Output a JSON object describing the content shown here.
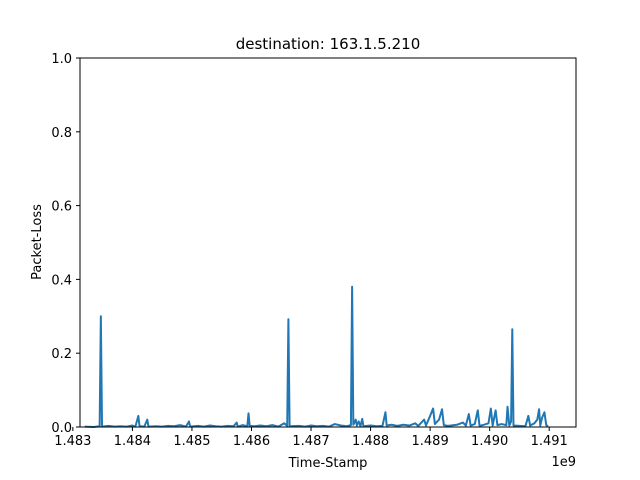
{
  "chart_data": {
    "type": "line",
    "title": "destination: 163.1.5.210",
    "xlabel": "Time-Stamp",
    "ylabel": "Packet-Loss",
    "x_offset_label": "1e9",
    "xlim": [
      1.48312,
      1.49145
    ],
    "ylim": [
      0.0,
      1.0
    ],
    "x_ticks": [
      1.483,
      1.484,
      1.485,
      1.486,
      1.487,
      1.488,
      1.489,
      1.49,
      1.491
    ],
    "x_tick_labels": [
      "1.483",
      "1.484",
      "1.485",
      "1.486",
      "1.487",
      "1.488",
      "1.489",
      "1.490",
      "1.491"
    ],
    "y_ticks": [
      0.0,
      0.2,
      0.4,
      0.6,
      0.8,
      1.0
    ],
    "y_tick_labels": [
      "0.0",
      "0.2",
      "0.4",
      "0.6",
      "0.8",
      "1.0"
    ],
    "grid": false,
    "legend": "none",
    "line_color": "#1f77b4",
    "series": [
      {
        "values": [
          [
            1.4832,
            0.001
          ],
          [
            1.48335,
            0.0
          ],
          [
            1.4834,
            0.001
          ],
          [
            1.48345,
            0.002
          ],
          [
            1.48347,
            0.3
          ],
          [
            1.48349,
            0.001
          ],
          [
            1.4836,
            0.003
          ],
          [
            1.4837,
            0.001
          ],
          [
            1.4838,
            0.002
          ],
          [
            1.4839,
            0.001
          ],
          [
            1.484,
            0.004
          ],
          [
            1.48405,
            0.001
          ],
          [
            1.4841,
            0.03
          ],
          [
            1.48412,
            0.002
          ],
          [
            1.4842,
            0.001
          ],
          [
            1.48425,
            0.02
          ],
          [
            1.48427,
            0.001
          ],
          [
            1.4844,
            0.002
          ],
          [
            1.4845,
            0.001
          ],
          [
            1.4846,
            0.003
          ],
          [
            1.4847,
            0.002
          ],
          [
            1.4848,
            0.005
          ],
          [
            1.4849,
            0.001
          ],
          [
            1.48495,
            0.015
          ],
          [
            1.48497,
            0.001
          ],
          [
            1.4851,
            0.003
          ],
          [
            1.4852,
            0.001
          ],
          [
            1.4853,
            0.004
          ],
          [
            1.4854,
            0.002
          ],
          [
            1.4855,
            0.001
          ],
          [
            1.4856,
            0.003
          ],
          [
            1.4857,
            0.002
          ],
          [
            1.48575,
            0.012
          ],
          [
            1.48577,
            0.001
          ],
          [
            1.48585,
            0.005
          ],
          [
            1.48593,
            0.002
          ],
          [
            1.48595,
            0.037
          ],
          [
            1.48597,
            0.003
          ],
          [
            1.48605,
            0.002
          ],
          [
            1.48615,
            0.004
          ],
          [
            1.48625,
            0.002
          ],
          [
            1.48635,
            0.005
          ],
          [
            1.48645,
            0.001
          ],
          [
            1.48655,
            0.01
          ],
          [
            1.4866,
            0.003
          ],
          [
            1.48662,
            0.292
          ],
          [
            1.48664,
            0.002
          ],
          [
            1.4868,
            0.003
          ],
          [
            1.4869,
            0.001
          ],
          [
            1.487,
            0.004
          ],
          [
            1.4871,
            0.002
          ],
          [
            1.4872,
            0.003
          ],
          [
            1.4873,
            0.001
          ],
          [
            1.4874,
            0.008
          ],
          [
            1.4875,
            0.004
          ],
          [
            1.4876,
            0.002
          ],
          [
            1.48767,
            0.005
          ],
          [
            1.48769,
            0.38
          ],
          [
            1.48771,
            0.006
          ],
          [
            1.48775,
            0.02
          ],
          [
            1.48777,
            0.004
          ],
          [
            1.4878,
            0.015
          ],
          [
            1.48783,
            0.002
          ],
          [
            1.48786,
            0.022
          ],
          [
            1.48788,
            0.002
          ],
          [
            1.488,
            0.004
          ],
          [
            1.4881,
            0.002
          ],
          [
            1.4882,
            0.003
          ],
          [
            1.48825,
            0.04
          ],
          [
            1.48827,
            0.004
          ],
          [
            1.48835,
            0.006
          ],
          [
            1.48845,
            0.003
          ],
          [
            1.48855,
            0.006
          ],
          [
            1.48865,
            0.004
          ],
          [
            1.48875,
            0.01
          ],
          [
            1.4888,
            0.003
          ],
          [
            1.4889,
            0.02
          ],
          [
            1.48893,
            0.004
          ],
          [
            1.489,
            0.03
          ],
          [
            1.48905,
            0.05
          ],
          [
            1.48908,
            0.008
          ],
          [
            1.48915,
            0.02
          ],
          [
            1.4892,
            0.048
          ],
          [
            1.48923,
            0.005
          ],
          [
            1.4893,
            0.003
          ],
          [
            1.48945,
            0.006
          ],
          [
            1.48955,
            0.012
          ],
          [
            1.4896,
            0.004
          ],
          [
            1.48965,
            0.035
          ],
          [
            1.48968,
            0.004
          ],
          [
            1.48975,
            0.008
          ],
          [
            1.4898,
            0.045
          ],
          [
            1.48983,
            0.003
          ],
          [
            1.4899,
            0.006
          ],
          [
            1.48998,
            0.01
          ],
          [
            1.49002,
            0.05
          ],
          [
            1.49005,
            0.004
          ],
          [
            1.4901,
            0.045
          ],
          [
            1.49013,
            0.005
          ],
          [
            1.4902,
            0.008
          ],
          [
            1.49028,
            0.005
          ],
          [
            1.4903,
            0.055
          ],
          [
            1.49033,
            0.004
          ],
          [
            1.49036,
            0.015
          ],
          [
            1.49038,
            0.265
          ],
          [
            1.4904,
            0.004
          ],
          [
            1.4905,
            0.003
          ],
          [
            1.4906,
            0.002
          ],
          [
            1.49065,
            0.03
          ],
          [
            1.49068,
            0.004
          ],
          [
            1.49075,
            0.01
          ],
          [
            1.4908,
            0.02
          ],
          [
            1.49083,
            0.048
          ],
          [
            1.49085,
            0.004
          ],
          [
            1.49088,
            0.025
          ],
          [
            1.49092,
            0.04
          ],
          [
            1.49095,
            0.005
          ],
          [
            1.49098,
            0.002
          ]
        ]
      }
    ]
  }
}
